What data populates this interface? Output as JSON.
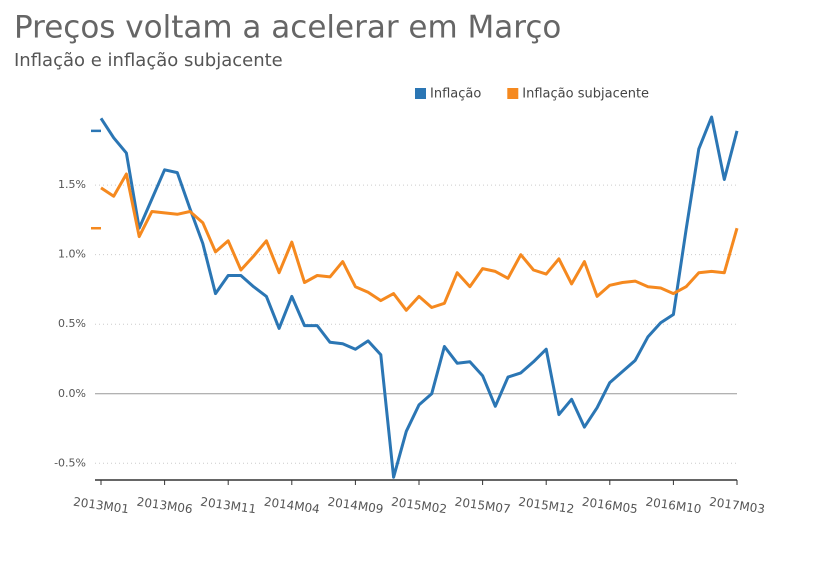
{
  "chart_data": {
    "type": "line",
    "title": "Preços voltam a acelerar em Março",
    "subtitle": "Inflação e inflação subjacente",
    "categories": [
      "2013M01",
      null,
      null,
      null,
      null,
      "2013M06",
      null,
      null,
      null,
      null,
      "2013M11",
      null,
      null,
      null,
      null,
      "2014M04",
      null,
      null,
      null,
      null,
      "2014M09",
      null,
      null,
      null,
      null,
      "2015M02",
      null,
      null,
      null,
      null,
      "2015M07",
      null,
      null,
      null,
      null,
      "2015M12",
      null,
      null,
      null,
      null,
      "2016M05",
      null,
      null,
      null,
      null,
      "2016M10",
      null,
      null,
      null,
      null,
      "2017M03"
    ],
    "series": [
      {
        "name": "Inflação",
        "color": "#2b76b4",
        "values": [
          1.98,
          1.84,
          1.73,
          1.19,
          1.4,
          1.61,
          1.59,
          1.33,
          1.08,
          0.72,
          0.85,
          0.85,
          0.77,
          0.7,
          0.47,
          0.7,
          0.49,
          0.49,
          0.37,
          0.36,
          0.32,
          0.38,
          0.28,
          -0.6,
          -0.27,
          -0.08,
          0.0,
          0.34,
          0.22,
          0.23,
          0.13,
          -0.09,
          0.12,
          0.15,
          0.23,
          0.32,
          -0.15,
          -0.04,
          -0.24,
          -0.1,
          0.08,
          0.16,
          0.24,
          0.41,
          0.51,
          0.57,
          1.18,
          1.76,
          1.99,
          1.54,
          1.89
        ]
      },
      {
        "name": "Inflação subjacente",
        "color": "#f5891f",
        "values": [
          1.48,
          1.42,
          1.58,
          1.13,
          1.31,
          1.3,
          1.29,
          1.31,
          1.23,
          1.02,
          1.1,
          0.89,
          0.99,
          1.1,
          0.87,
          1.09,
          0.8,
          0.85,
          0.84,
          0.95,
          0.77,
          0.73,
          0.67,
          0.72,
          0.6,
          0.7,
          0.62,
          0.65,
          0.87,
          0.77,
          0.9,
          0.88,
          0.83,
          1.0,
          0.89,
          0.86,
          0.97,
          0.79,
          0.95,
          0.7,
          0.78,
          0.8,
          0.81,
          0.77,
          0.76,
          0.72,
          0.77,
          0.87,
          0.88,
          0.87,
          1.19
        ]
      }
    ],
    "ylim": [
      -0.62,
      2.04
    ],
    "yticks": [
      {
        "value": -0.5,
        "label": "-0.5%"
      },
      {
        "value": 0,
        "label": "0.0%"
      },
      {
        "value": 0.5,
        "label": "0.5%"
      },
      {
        "value": 1,
        "label": "1.0%"
      },
      {
        "value": 1.5,
        "label": "1.5%"
      }
    ],
    "grid": true,
    "legend": "top-right"
  }
}
